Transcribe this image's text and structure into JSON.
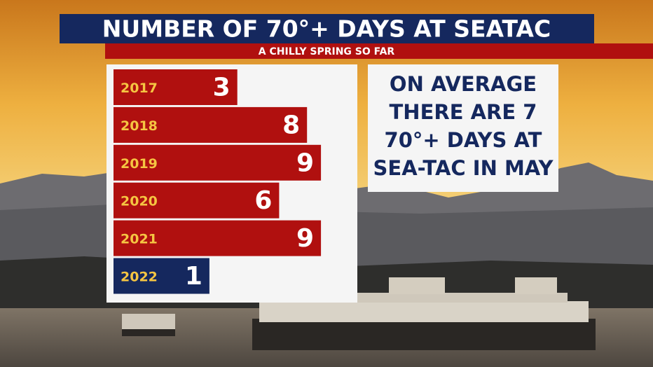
{
  "chart_data": {
    "type": "bar",
    "orientation": "horizontal",
    "title": "NUMBER OF 70°+ DAYS AT SEATAC",
    "subtitle": "A CHILLY SPRING SO FAR",
    "categories": [
      "2017",
      "2018",
      "2019",
      "2020",
      "2021",
      "2022"
    ],
    "values": [
      3,
      8,
      9,
      6,
      9,
      1
    ],
    "colors": [
      "#b0100f",
      "#b0100f",
      "#b0100f",
      "#b0100f",
      "#b0100f",
      "#15285e"
    ],
    "annotation": [
      "ON AVERAGE",
      "THERE ARE 7",
      "70°+ DAYS AT",
      "SEA-TAC IN MAY"
    ]
  }
}
